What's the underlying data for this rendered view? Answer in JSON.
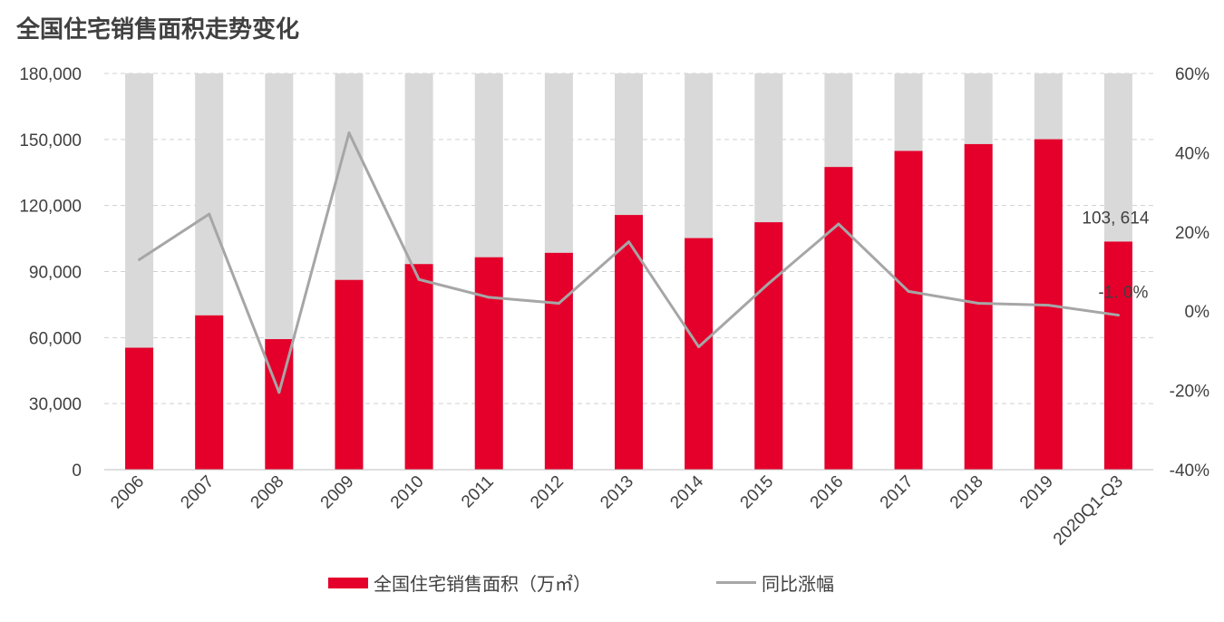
{
  "title": "全国住宅销售面积走势变化",
  "chart_data": {
    "type": "bar",
    "categories": [
      "2006",
      "2007",
      "2008",
      "2009",
      "2010",
      "2011",
      "2012",
      "2013",
      "2014",
      "2015",
      "2016",
      "2017",
      "2018",
      "2019",
      "2020Q1-Q3"
    ],
    "series": [
      {
        "name": "全国住宅销售面积（万㎡）",
        "type": "bar",
        "axis": "left",
        "color": "#e4002b",
        "values": [
          55400,
          70100,
          59300,
          86200,
          93400,
          96500,
          98500,
          115700,
          105200,
          112400,
          137500,
          144800,
          147900,
          150100,
          103614
        ]
      },
      {
        "name": "同比涨幅",
        "type": "line",
        "axis": "right",
        "color": "#a6a6a6",
        "values": [
          0.13,
          0.245,
          -0.205,
          0.45,
          0.08,
          0.035,
          0.02,
          0.175,
          -0.09,
          0.07,
          0.22,
          0.05,
          0.02,
          0.015,
          -0.01
        ]
      }
    ],
    "background_bar_value": 180000,
    "background_bar_color": "#d9d9d9",
    "y_left": {
      "min": 0,
      "max": 180000,
      "ticks": [
        "0",
        "30,000",
        "60,000",
        "90,000",
        "120,000",
        "150,000",
        "180,000"
      ]
    },
    "y_right": {
      "min": -0.4,
      "max": 0.6,
      "ticks": [
        "-40%",
        "-20%",
        "0%",
        "20%",
        "40%",
        "60%"
      ]
    },
    "annotations": [
      {
        "text": "103, 614",
        "category": "2020Q1-Q3",
        "series": "全国住宅销售面积（万㎡）"
      },
      {
        "text": "-1. 0%",
        "category": "2020Q1-Q3",
        "series": "同比涨幅"
      }
    ],
    "grid": true,
    "legend": "bottom"
  }
}
